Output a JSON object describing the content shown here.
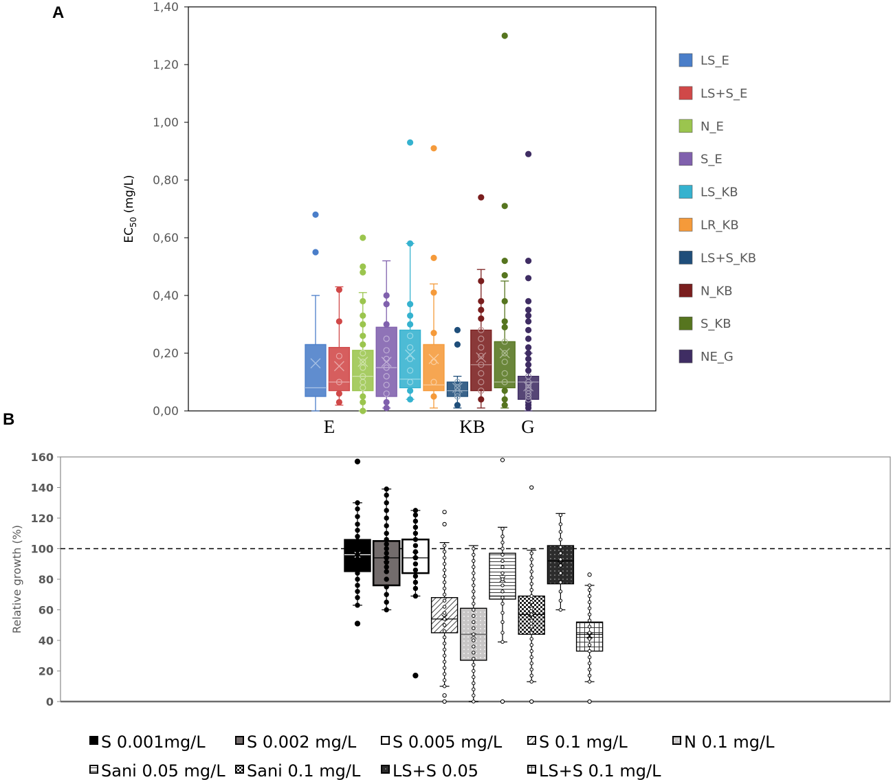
{
  "panel_a_label": "A",
  "panel_b_label": "B",
  "chart_data": [
    {
      "type": "box",
      "panel": "A",
      "ylabel_main": "EC",
      "ylabel_sub": "50",
      "ylabel_unit": " (mg/L)",
      "ylim": [
        0,
        1.4
      ],
      "yticks": [
        "0,00",
        "0,20",
        "0,40",
        "0,60",
        "0,80",
        "1,00",
        "1,20",
        "1,40"
      ],
      "group_labels": [
        "E",
        "KB",
        "G"
      ],
      "series": [
        {
          "name": "LS_E",
          "color": "#4a7ec9",
          "min": 0.0,
          "q1": 0.05,
          "median": 0.08,
          "q3": 0.23,
          "max": 0.4,
          "mean": 0.165,
          "points": [
            0.55,
            0.68
          ]
        },
        {
          "name": "LS+S_E",
          "color": "#d04848",
          "min": 0.02,
          "q1": 0.07,
          "median": 0.1,
          "q3": 0.22,
          "max": 0.43,
          "mean": 0.155,
          "points": [
            0.03,
            0.06,
            0.1,
            0.19,
            0.31,
            0.42
          ]
        },
        {
          "name": "N_E",
          "color": "#9bc54e",
          "min": 0.0,
          "q1": 0.07,
          "median": 0.12,
          "q3": 0.21,
          "max": 0.41,
          "mean": 0.17,
          "points": [
            0.0,
            0.03,
            0.05,
            0.08,
            0.1,
            0.12,
            0.15,
            0.17,
            0.2,
            0.23,
            0.26,
            0.3,
            0.33,
            0.38,
            0.48,
            0.5,
            0.6
          ]
        },
        {
          "name": "S_E",
          "color": "#8060ad",
          "min": 0.01,
          "q1": 0.05,
          "median": 0.15,
          "q3": 0.29,
          "max": 0.52,
          "mean": 0.17,
          "points": [
            0.01,
            0.03,
            0.06,
            0.09,
            0.12,
            0.15,
            0.18,
            0.21,
            0.25,
            0.3,
            0.37,
            0.4
          ]
        },
        {
          "name": "LS_KB",
          "color": "#35b2cf",
          "min": 0.04,
          "q1": 0.08,
          "median": 0.11,
          "q3": 0.28,
          "max": 0.58,
          "mean": 0.195,
          "points": [
            0.04,
            0.07,
            0.1,
            0.14,
            0.18,
            0.22,
            0.26,
            0.3,
            0.33,
            0.37,
            0.58,
            0.93
          ]
        },
        {
          "name": "LR_KB",
          "color": "#f59a3a",
          "min": 0.01,
          "q1": 0.07,
          "median": 0.09,
          "q3": 0.23,
          "max": 0.44,
          "mean": 0.18,
          "points": [
            0.05,
            0.1,
            0.17,
            0.27,
            0.41,
            0.53,
            0.91
          ]
        },
        {
          "name": "LS+S_KB",
          "color": "#1f4e7a",
          "min": 0.01,
          "q1": 0.05,
          "median": 0.07,
          "q3": 0.1,
          "max": 0.12,
          "mean": 0.08,
          "points": [
            0.02,
            0.05,
            0.06,
            0.08,
            0.1,
            0.23,
            0.28
          ]
        },
        {
          "name": "N_KB",
          "color": "#7a1e1e",
          "min": 0.01,
          "q1": 0.07,
          "median": 0.16,
          "q3": 0.28,
          "max": 0.49,
          "mean": 0.185,
          "points": [
            0.04,
            0.07,
            0.1,
            0.13,
            0.16,
            0.19,
            0.22,
            0.25,
            0.28,
            0.32,
            0.35,
            0.38,
            0.45,
            0.74
          ]
        },
        {
          "name": "S_KB",
          "color": "#56751f",
          "min": 0.01,
          "q1": 0.08,
          "median": 0.1,
          "q3": 0.24,
          "max": 0.45,
          "mean": 0.2,
          "points": [
            0.02,
            0.04,
            0.07,
            0.1,
            0.13,
            0.17,
            0.2,
            0.24,
            0.29,
            0.31,
            0.38,
            0.47,
            0.52,
            0.71,
            1.3
          ]
        },
        {
          "name": "NE_G",
          "color": "#3f2d63",
          "min": 0.0,
          "q1": 0.04,
          "median": 0.1,
          "q3": 0.12,
          "max": 0.2,
          "mean": 0.085,
          "points": [
            0.01,
            0.02,
            0.03,
            0.04,
            0.05,
            0.06,
            0.07,
            0.08,
            0.09,
            0.1,
            0.12,
            0.14,
            0.16,
            0.18,
            0.2,
            0.22,
            0.25,
            0.28,
            0.31,
            0.33,
            0.35,
            0.38,
            0.46,
            0.52,
            0.89
          ]
        }
      ]
    },
    {
      "type": "box",
      "panel": "B",
      "ylabel": "Relative growth (%)",
      "ylim": [
        0,
        160
      ],
      "yticks": [
        "0",
        "20",
        "40",
        "60",
        "80",
        "100",
        "120",
        "140",
        "160"
      ],
      "reference_line": 100,
      "series": [
        {
          "name": "S 0.001mg/L",
          "pattern": "solid-black",
          "min": 63,
          "q1": 85,
          "median": 96,
          "q3": 106,
          "max": 130,
          "mean": 96,
          "outliers": [
            51,
            157
          ],
          "points": [
            63,
            68,
            72,
            76,
            80,
            84,
            87,
            90,
            93,
            96,
            99,
            102,
            105,
            108,
            112,
            116,
            121,
            126,
            130
          ]
        },
        {
          "name": "S 0.002 mg/L",
          "pattern": "solid-gray",
          "min": 60,
          "q1": 76,
          "median": 94,
          "q3": 105,
          "max": 139,
          "mean": 93,
          "outliers": [],
          "points": [
            60,
            65,
            70,
            75,
            80,
            85,
            88,
            91,
            94,
            97,
            100,
            103,
            106,
            110,
            115,
            120,
            125,
            130,
            135,
            139
          ]
        },
        {
          "name": "S 0.005 mg/L",
          "pattern": "white",
          "min": 69,
          "q1": 84,
          "median": 94,
          "q3": 106,
          "max": 125,
          "mean": 96,
          "outliers": [
            17
          ],
          "points": [
            69,
            74,
            78,
            82,
            86,
            90,
            94,
            98,
            102,
            106,
            110,
            114,
            118,
            122,
            125
          ]
        },
        {
          "name": "S 0.1 mg/L",
          "pattern": "diagonal",
          "min": 10,
          "q1": 45,
          "median": 54,
          "q3": 68,
          "max": 104,
          "mean": 55,
          "outliers": [
            0,
            4,
            116,
            124
          ],
          "points": [
            10,
            14,
            18,
            22,
            26,
            30,
            34,
            38,
            42,
            46,
            50,
            54,
            58,
            62,
            66,
            70,
            74,
            78,
            82,
            86,
            90,
            94,
            98,
            102
          ]
        },
        {
          "name": "N 0.1 mg/L",
          "pattern": "dots-gray",
          "min": 0,
          "q1": 27,
          "median": 44,
          "q3": 61,
          "max": 102,
          "mean": 43,
          "outliers": [],
          "points": [
            0,
            4,
            8,
            12,
            16,
            20,
            24,
            28,
            32,
            36,
            40,
            44,
            48,
            52,
            56,
            60,
            64,
            68,
            72,
            76,
            80,
            84,
            88,
            92,
            96,
            100
          ]
        },
        {
          "name": "Sani 0.05 mg/L",
          "pattern": "horizontal",
          "min": 39,
          "q1": 67,
          "median": 69,
          "q3": 97,
          "max": 114,
          "mean": 80,
          "outliers": [
            0,
            158
          ],
          "points": [
            39,
            45,
            52,
            58,
            64,
            68,
            72,
            76,
            80,
            84,
            88,
            92,
            96,
            100,
            104,
            108,
            113
          ]
        },
        {
          "name": "Sani 0.1 mg/L",
          "pattern": "checker",
          "min": 13,
          "q1": 44,
          "median": 57,
          "q3": 69,
          "max": 99,
          "mean": 57,
          "outliers": [
            0,
            140
          ],
          "points": [
            13,
            17,
            21,
            25,
            29,
            33,
            37,
            41,
            45,
            49,
            53,
            57,
            61,
            65,
            69,
            73,
            77,
            81,
            85,
            89,
            93,
            97
          ]
        },
        {
          "name": "LS+S 0.05",
          "pattern": "dark-dots",
          "min": 60,
          "q1": 77,
          "median": 92,
          "q3": 102,
          "max": 123,
          "mean": 90,
          "outliers": [],
          "points": [
            60,
            66,
            72,
            78,
            84,
            89,
            93,
            97,
            101,
            106,
            111,
            116,
            122
          ]
        },
        {
          "name": "LS+S 0.1 mg/L",
          "pattern": "grid",
          "min": 13,
          "q1": 33,
          "median": 44,
          "q3": 52,
          "max": 76,
          "mean": 43,
          "outliers": [
            0,
            83
          ],
          "points": [
            13,
            17,
            21,
            25,
            29,
            33,
            37,
            41,
            45,
            49,
            53,
            57,
            61,
            65,
            69,
            73,
            76
          ]
        }
      ]
    }
  ]
}
